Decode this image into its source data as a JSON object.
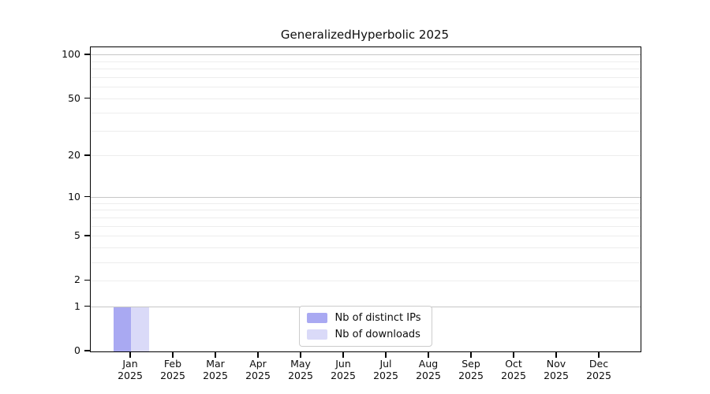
{
  "chart_data": {
    "type": "bar",
    "title": "GeneralizedHyperbolic 2025",
    "categories": [
      "Jan 2025",
      "Feb 2025",
      "Mar 2025",
      "Apr 2025",
      "May 2025",
      "Jun 2025",
      "Jul 2025",
      "Aug 2025",
      "Sep 2025",
      "Oct 2025",
      "Nov 2025",
      "Dec 2025"
    ],
    "series": [
      {
        "name": "Nb of distinct IPs",
        "color": "#a9a9f2",
        "values": [
          1,
          0,
          0,
          0,
          0,
          0,
          0,
          0,
          0,
          0,
          0,
          0
        ]
      },
      {
        "name": "Nb of downloads",
        "color": "#dadaf8",
        "values": [
          1,
          0,
          0,
          0,
          0,
          0,
          0,
          0,
          0,
          0,
          0,
          0
        ]
      }
    ],
    "xlabel": "",
    "ylabel": "",
    "yscale": "log1p",
    "ylim": [
      0,
      113
    ],
    "yticks": [
      0,
      1,
      2,
      5,
      10,
      20,
      50,
      100
    ],
    "ytick_labels": [
      "0",
      "1",
      "2",
      "5",
      "10",
      "20",
      "50",
      "100"
    ],
    "grid": {
      "major_lines": [
        1,
        10,
        100
      ],
      "minor_lines": [
        2,
        3,
        4,
        5,
        6,
        7,
        8,
        9,
        20,
        30,
        40,
        50,
        60,
        70,
        80,
        90
      ],
      "major_color": "#c6c6c6",
      "minor_color": "#ededed"
    },
    "legend": {
      "position": "bottom-center"
    },
    "colors": {
      "spine": "#000000",
      "background": "#ffffff",
      "text": "#0d0d0d"
    }
  }
}
